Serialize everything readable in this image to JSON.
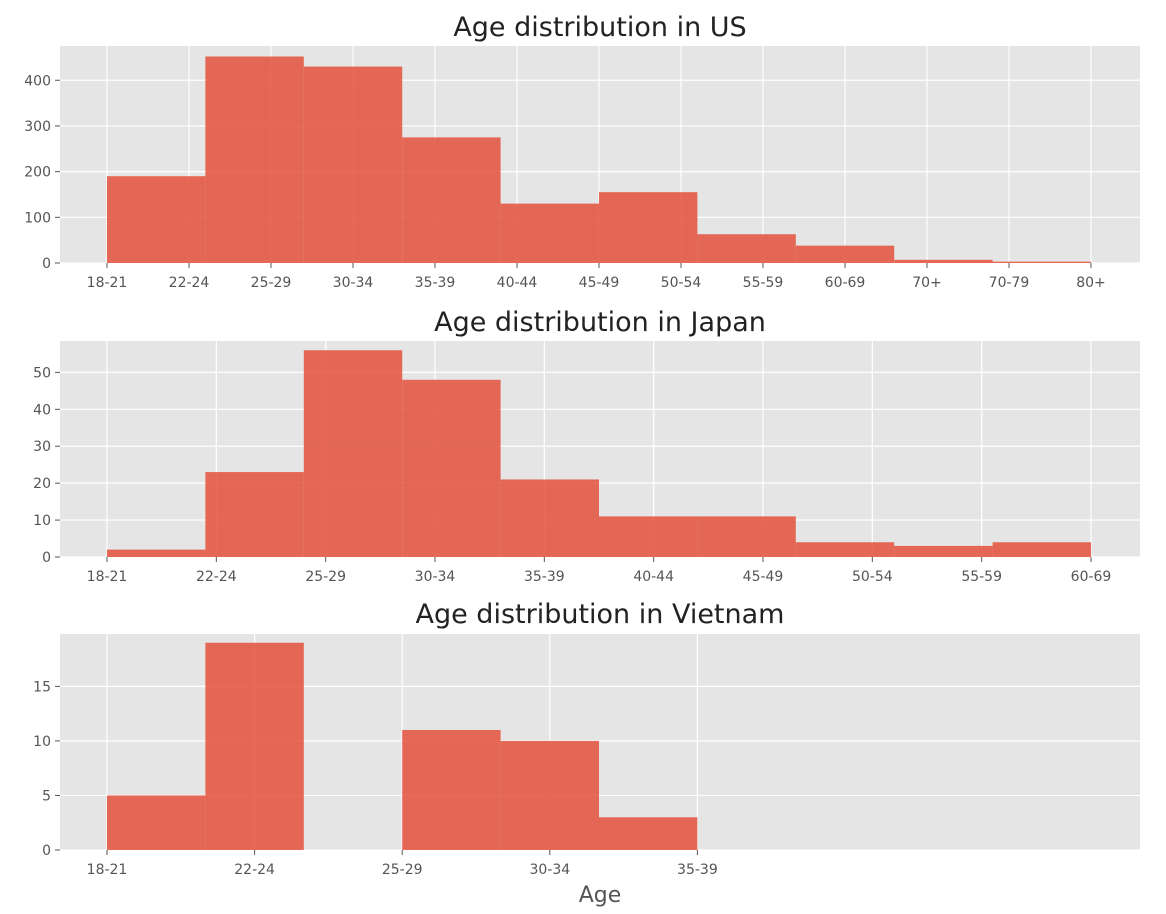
{
  "chart_data": [
    {
      "type": "bar",
      "title": "Age distribution in US",
      "xlabel": "",
      "ylabel": "",
      "categories": [
        "18-21",
        "22-24",
        "25-29",
        "30-34",
        "35-39",
        "40-44",
        "45-49",
        "50-54",
        "55-59",
        "60-69",
        "70+",
        "70-79",
        "80+"
      ],
      "bins": [
        {
          "label": "18-21",
          "value": 190
        },
        {
          "label": "22-24",
          "value": 452
        },
        {
          "label": "25-29",
          "value": 430
        },
        {
          "label": "30-34",
          "value": 275
        },
        {
          "label": "35-39",
          "value": 130
        },
        {
          "label": "40-44",
          "value": 155
        },
        {
          "label": "45-49",
          "value": 63
        },
        {
          "label": "50-54",
          "value": 38
        },
        {
          "label": "55-59",
          "value": 7
        },
        {
          "label": "60-69",
          "value": 3
        }
      ],
      "yticks": [
        0,
        100,
        200,
        300,
        400
      ],
      "ylim": [
        0,
        475
      ],
      "grid": true
    },
    {
      "type": "bar",
      "title": "Age distribution in Japan",
      "xlabel": "",
      "ylabel": "",
      "categories": [
        "18-21",
        "22-24",
        "25-29",
        "30-34",
        "35-39",
        "40-44",
        "45-49",
        "50-54",
        "55-59",
        "60-69"
      ],
      "bins": [
        {
          "label": "18-21",
          "value": 2
        },
        {
          "label": "22-24",
          "value": 23
        },
        {
          "label": "25-29",
          "value": 56
        },
        {
          "label": "30-34",
          "value": 48
        },
        {
          "label": "35-39",
          "value": 21
        },
        {
          "label": "40-44",
          "value": 11
        },
        {
          "label": "45-49",
          "value": 11
        },
        {
          "label": "50-54",
          "value": 4
        },
        {
          "label": "55-59",
          "value": 3
        },
        {
          "label": "60-69",
          "value": 4
        }
      ],
      "yticks": [
        0,
        10,
        20,
        30,
        40,
        50
      ],
      "ylim": [
        0,
        58.5
      ],
      "grid": true
    },
    {
      "type": "bar",
      "title": "Age distribution in Vietnam",
      "xlabel": "Age",
      "ylabel": "",
      "categories": [
        "18-21",
        "22-24",
        "25-29",
        "30-34",
        "35-39"
      ],
      "bins": [
        {
          "label": "18-21",
          "value": 5
        },
        {
          "label": "22-24",
          "value": 19
        },
        {
          "label": "",
          "value": 0
        },
        {
          "label": "25-29",
          "value": 11
        },
        {
          "label": "30-34",
          "value": 10
        },
        {
          "label": "35-39",
          "value": 3
        }
      ],
      "yticks": [
        0,
        5,
        10,
        15
      ],
      "ylim": [
        0,
        19.8
      ],
      "grid": true
    }
  ]
}
